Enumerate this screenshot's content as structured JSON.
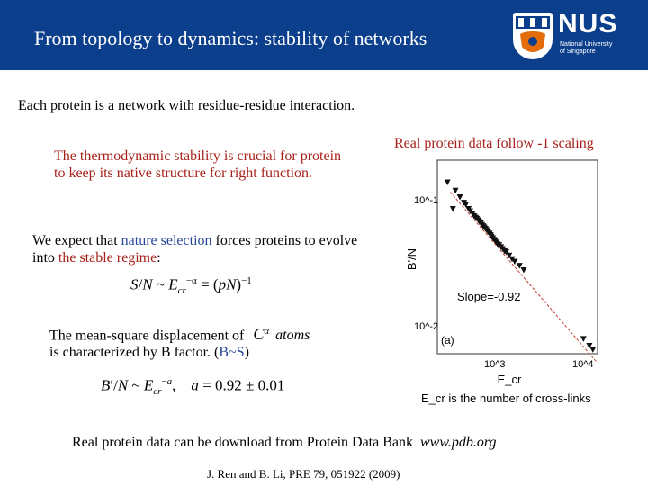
{
  "header": {
    "title": "From topology to dynamics: stability of networks",
    "logo_text": "NUS",
    "logo_subtitle_1": "National University",
    "logo_subtitle_2": "of Singapore",
    "background": "#0b3f8c"
  },
  "intro": "Each protein is a network with residue-residue interaction.",
  "stability_text": "The thermodynamic stability is crucial for protein to keep its native structure for right function.",
  "expect": {
    "part1": "We expect that ",
    "highlight1": "nature selection",
    "part2": " forces proteins to evolve into ",
    "highlight2": "the stable regime",
    "part3": ":"
  },
  "msd": {
    "line1": "The mean-square displacement of",
    "atoms_label": "atoms",
    "line2_part1": "is characterized by B factor. (",
    "line2_highlight": "B~S",
    "line2_part2": ")"
  },
  "formula1": "S/N ~ E_cr^-α = (pN)^-1",
  "formula2": "B'/N ~ E_cr^-α,   a = 0.92 ± 0.01",
  "plot_caption": "Real protein data follow -1 scaling",
  "download": {
    "text": "Real protein data can be download from Protein Data Bank",
    "link": "www.pdb.org"
  },
  "reference": "J. Ren and B. Li, PRE 79, 051922 (2009)",
  "chart_data": {
    "type": "scatter",
    "xlabel": "E_cr",
    "ylabel": "B'/N",
    "x_ticks": [
      "10^3",
      "10^4"
    ],
    "y_ticks": [
      "10^-1",
      "10^-2"
    ],
    "log_x": true,
    "log_y": true,
    "annotation": "Slope=-0.92",
    "panel_label": "(a)",
    "caption": "E_cr is the number of cross-links",
    "fit_slope": -0.92,
    "points": [
      [
        320,
        0.16
      ],
      [
        360,
        0.14
      ],
      [
        400,
        0.125
      ],
      [
        420,
        0.12
      ],
      [
        450,
        0.11
      ],
      [
        470,
        0.105
      ],
      [
        500,
        0.1
      ],
      [
        520,
        0.095
      ],
      [
        540,
        0.092
      ],
      [
        560,
        0.09
      ],
      [
        580,
        0.087
      ],
      [
        600,
        0.084
      ],
      [
        620,
        0.082
      ],
      [
        640,
        0.079
      ],
      [
        660,
        0.077
      ],
      [
        680,
        0.075
      ],
      [
        700,
        0.073
      ],
      [
        720,
        0.071
      ],
      [
        750,
        0.068
      ],
      [
        780,
        0.066
      ],
      [
        800,
        0.064
      ],
      [
        820,
        0.062
      ],
      [
        850,
        0.06
      ],
      [
        880,
        0.058
      ],
      [
        900,
        0.057
      ],
      [
        930,
        0.055
      ],
      [
        960,
        0.053
      ],
      [
        1000,
        0.052
      ],
      [
        1050,
        0.05
      ],
      [
        1100,
        0.048
      ],
      [
        1150,
        0.046
      ],
      [
        1200,
        0.045
      ],
      [
        1300,
        0.042
      ],
      [
        1400,
        0.039
      ],
      [
        1500,
        0.037
      ],
      [
        1700,
        0.034
      ],
      [
        1900,
        0.031
      ],
      [
        9000,
        0.0075
      ],
      [
        10500,
        0.0065
      ],
      [
        11500,
        0.006
      ]
    ],
    "outliers": [
      [
        260,
        0.19
      ],
      [
        300,
        0.11
      ]
    ]
  }
}
